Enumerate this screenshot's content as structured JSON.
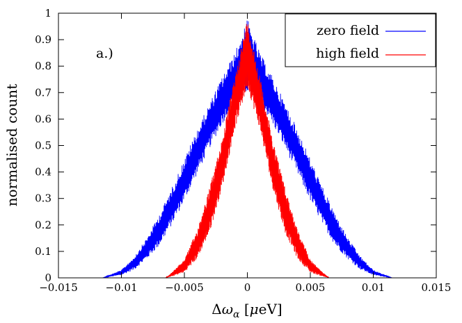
{
  "chart_data": {
    "type": "line",
    "title": "",
    "xlabel": "Δω_α [μeV]",
    "ylabel": "normalised count",
    "xlim": [
      -0.015,
      0.015
    ],
    "ylim": [
      0,
      1
    ],
    "x_ticks": [
      -0.015,
      -0.01,
      -0.005,
      0,
      0.005,
      0.01,
      0.015
    ],
    "x_tick_labels": [
      "−0.015",
      "−0.01",
      "−0.005",
      "0",
      "0.005",
      "0.01",
      "0.015"
    ],
    "y_ticks": [
      0,
      0.1,
      0.2,
      0.3,
      0.4,
      0.5,
      0.6,
      0.7,
      0.8,
      0.9,
      1
    ],
    "y_tick_labels": [
      "0",
      "0.1",
      "0.2",
      "0.3",
      "0.4",
      "0.5",
      "0.6",
      "0.7",
      "0.8",
      "0.9",
      "1"
    ],
    "grid": false,
    "legend_position": "top-right",
    "annotation": "a.)",
    "series": [
      {
        "name": "zero field",
        "color": "#0000ff",
        "x": [
          -0.0115,
          -0.01,
          -0.009,
          -0.008,
          -0.007,
          -0.006,
          -0.005,
          -0.004,
          -0.003,
          -0.002,
          -0.001,
          0,
          0.001,
          0.002,
          0.003,
          0.004,
          0.005,
          0.006,
          0.007,
          0.008,
          0.009,
          0.01,
          0.0115
        ],
        "lower": [
          0,
          0.01,
          0.03,
          0.07,
          0.12,
          0.2,
          0.29,
          0.39,
          0.49,
          0.58,
          0.66,
          0.7,
          0.66,
          0.58,
          0.49,
          0.39,
          0.29,
          0.2,
          0.12,
          0.07,
          0.03,
          0.01,
          0
        ],
        "upper": [
          0,
          0.03,
          0.08,
          0.15,
          0.24,
          0.34,
          0.45,
          0.56,
          0.66,
          0.76,
          0.85,
          0.98,
          0.85,
          0.76,
          0.66,
          0.56,
          0.45,
          0.34,
          0.24,
          0.15,
          0.08,
          0.03,
          0
        ]
      },
      {
        "name": "high field",
        "color": "#ff0000",
        "x": [
          -0.0065,
          -0.006,
          -0.005,
          -0.004,
          -0.003,
          -0.002,
          -0.001,
          0,
          0.001,
          0.002,
          0.003,
          0.004,
          0.005,
          0.006,
          0.0065
        ],
        "lower": [
          0,
          0.005,
          0.02,
          0.07,
          0.17,
          0.34,
          0.56,
          0.72,
          0.56,
          0.34,
          0.17,
          0.07,
          0.02,
          0.005,
          0
        ],
        "upper": [
          0,
          0.02,
          0.07,
          0.18,
          0.34,
          0.53,
          0.76,
          0.98,
          0.76,
          0.53,
          0.34,
          0.18,
          0.07,
          0.02,
          0
        ]
      }
    ]
  }
}
